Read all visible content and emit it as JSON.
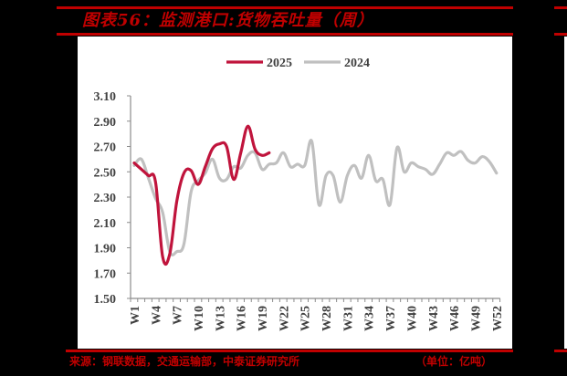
{
  "header": {
    "title": "图表56：监测港口:货物吞吐量（周）"
  },
  "footer": {
    "source": "来源：钢联数据，交通运输部，中泰证券研究所",
    "unit": "（单位：亿吨）"
  },
  "colors": {
    "accent_red": "#c00000",
    "series_2025": "#c0143c",
    "series_2024": "#c0c0c0",
    "background": "#000000",
    "panel": "#ffffff"
  },
  "chart_data": {
    "type": "line",
    "title": "监测港口:货物吞吐量（周）",
    "xlabel": "",
    "ylabel": "亿吨",
    "ylim": [
      1.5,
      3.1
    ],
    "yticks": [
      "1.50",
      "1.70",
      "1.90",
      "2.10",
      "2.30",
      "2.50",
      "2.70",
      "2.90",
      "3.10"
    ],
    "xtick_labels": [
      "W1",
      "W4",
      "W7",
      "W10",
      "W13",
      "W16",
      "W19",
      "W22",
      "W25",
      "W28",
      "W31",
      "W34",
      "W37",
      "W40",
      "W43",
      "W46",
      "W49",
      "W52"
    ],
    "legend": {
      "position": "top",
      "entries": [
        "2025",
        "2024"
      ]
    },
    "grid": false,
    "x": [
      "W1",
      "W2",
      "W3",
      "W4",
      "W5",
      "W6",
      "W7",
      "W8",
      "W9",
      "W10",
      "W11",
      "W12",
      "W13",
      "W14",
      "W15",
      "W16",
      "W17",
      "W18",
      "W19",
      "W20",
      "W21",
      "W22",
      "W23",
      "W24",
      "W25",
      "W26",
      "W27",
      "W28",
      "W29",
      "W30",
      "W31",
      "W32",
      "W33",
      "W34",
      "W35",
      "W36",
      "W37",
      "W38",
      "W39",
      "W40",
      "W41",
      "W42",
      "W43",
      "W44",
      "W45",
      "W46",
      "W47",
      "W48",
      "W49",
      "W50",
      "W51",
      "W52"
    ],
    "series": [
      {
        "name": "2025",
        "values": [
          2.57,
          2.52,
          2.47,
          2.42,
          1.83,
          1.85,
          2.27,
          2.49,
          2.51,
          2.4,
          2.54,
          2.68,
          2.72,
          2.7,
          2.44,
          2.65,
          2.86,
          2.68,
          2.63,
          2.65
        ]
      },
      {
        "name": "2024",
        "values": [
          2.55,
          2.6,
          2.45,
          2.29,
          2.18,
          1.87,
          1.87,
          1.93,
          2.34,
          2.43,
          2.49,
          2.6,
          2.45,
          2.44,
          2.54,
          2.53,
          2.63,
          2.65,
          2.52,
          2.56,
          2.57,
          2.65,
          2.54,
          2.56,
          2.55,
          2.74,
          2.24,
          2.47,
          2.47,
          2.26,
          2.47,
          2.55,
          2.45,
          2.63,
          2.43,
          2.44,
          2.24,
          2.69,
          2.5,
          2.57,
          2.54,
          2.52,
          2.48,
          2.56,
          2.65,
          2.63,
          2.66,
          2.59,
          2.57,
          2.62,
          2.58,
          2.49
        ]
      }
    ]
  }
}
